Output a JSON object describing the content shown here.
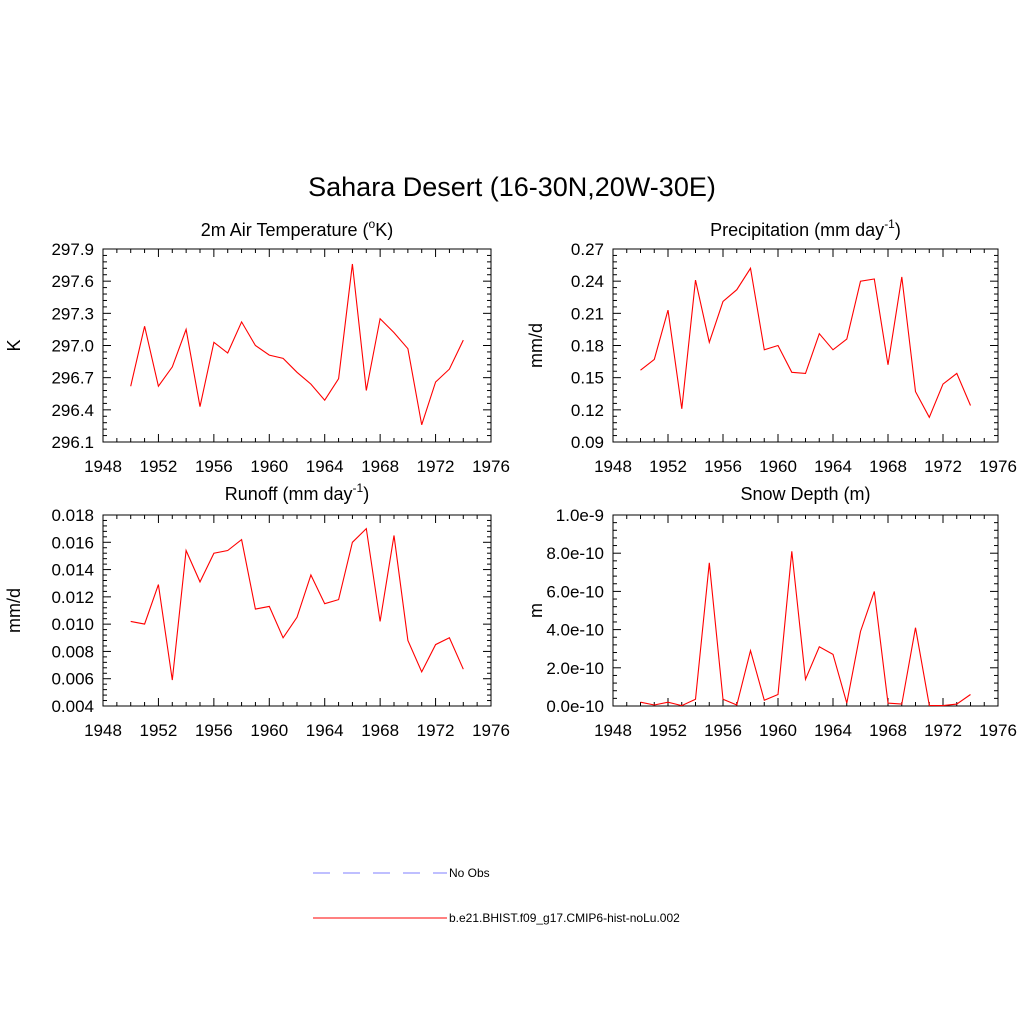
{
  "figure": {
    "title": "Sahara Desert (16-30N,20W-30E)",
    "series_color": "#ff0000",
    "obs_color": "#9999ff"
  },
  "legend": {
    "obs_label": "No Obs",
    "model_label": "b.e21.BHIST.f09_g17.CMIP6-hist-noLu.002"
  },
  "chart_data": [
    {
      "type": "line",
      "title_parts": [
        "2m Air Temperature (",
        "o",
        "K)"
      ],
      "title_style": "sup",
      "ylabel": "K",
      "xlim": [
        1948,
        1976
      ],
      "ylim": [
        296.1,
        297.9
      ],
      "xticks": [
        "1948",
        "1952",
        "1956",
        "1960",
        "1964",
        "1968",
        "1972",
        "1976"
      ],
      "yticks": [
        "296.1",
        "296.4",
        "296.7",
        "297.0",
        "297.3",
        "297.6",
        "297.9"
      ],
      "series": [
        {
          "x": [
            1950,
            1951,
            1952,
            1953,
            1954,
            1955,
            1956,
            1957,
            1958,
            1959,
            1960,
            1961,
            1962,
            1963,
            1964,
            1965,
            1966,
            1967,
            1968,
            1969,
            1970,
            1971,
            1972,
            1973,
            1974
          ],
          "values": [
            296.62,
            297.18,
            296.62,
            296.8,
            297.15,
            296.43,
            297.03,
            296.93,
            297.22,
            297.0,
            296.91,
            296.88,
            296.75,
            296.64,
            296.49,
            296.69,
            297.76,
            296.58,
            297.25,
            297.12,
            296.97,
            296.26,
            296.66,
            296.78,
            297.05
          ]
        }
      ]
    },
    {
      "type": "line",
      "title_parts": [
        "Precipitation (mm day",
        "-1",
        ")"
      ],
      "title_style": "sup",
      "ylabel": "mm/d",
      "xlim": [
        1948,
        1976
      ],
      "ylim": [
        0.09,
        0.27
      ],
      "xticks": [
        "1948",
        "1952",
        "1956",
        "1960",
        "1964",
        "1968",
        "1972",
        "1976"
      ],
      "yticks": [
        "0.09",
        "0.12",
        "0.15",
        "0.18",
        "0.21",
        "0.24",
        "0.27"
      ],
      "series": [
        {
          "x": [
            1950,
            1951,
            1952,
            1953,
            1954,
            1955,
            1956,
            1957,
            1958,
            1959,
            1960,
            1961,
            1962,
            1963,
            1964,
            1965,
            1966,
            1967,
            1968,
            1969,
            1970,
            1971,
            1972,
            1973,
            1974
          ],
          "values": [
            0.157,
            0.167,
            0.213,
            0.121,
            0.241,
            0.183,
            0.221,
            0.232,
            0.252,
            0.176,
            0.18,
            0.155,
            0.154,
            0.191,
            0.176,
            0.186,
            0.24,
            0.242,
            0.162,
            0.244,
            0.137,
            0.113,
            0.144,
            0.154,
            0.124
          ]
        }
      ]
    },
    {
      "type": "line",
      "title_parts": [
        "Runoff (mm day",
        "-1",
        ")"
      ],
      "title_style": "sup",
      "ylabel": "mm/d",
      "xlim": [
        1948,
        1976
      ],
      "ylim": [
        0.004,
        0.018
      ],
      "xticks": [
        "1948",
        "1952",
        "1956",
        "1960",
        "1964",
        "1968",
        "1972",
        "1976"
      ],
      "yticks": [
        "0.004",
        "0.006",
        "0.008",
        "0.010",
        "0.012",
        "0.014",
        "0.016",
        "0.018"
      ],
      "series": [
        {
          "x": [
            1950,
            1951,
            1952,
            1953,
            1954,
            1955,
            1956,
            1957,
            1958,
            1959,
            1960,
            1961,
            1962,
            1963,
            1964,
            1965,
            1966,
            1967,
            1968,
            1969,
            1970,
            1971,
            1972,
            1973,
            1974
          ],
          "values": [
            0.0102,
            0.01,
            0.0129,
            0.0059,
            0.0154,
            0.0131,
            0.0152,
            0.0154,
            0.0162,
            0.0111,
            0.0113,
            0.009,
            0.0105,
            0.0136,
            0.0115,
            0.0118,
            0.016,
            0.017,
            0.0102,
            0.0165,
            0.0088,
            0.0065,
            0.0085,
            0.009,
            0.0067
          ]
        }
      ]
    },
    {
      "type": "line",
      "title_parts": [
        "Snow Depth (m)"
      ],
      "title_style": "plain",
      "ylabel": "m",
      "xlim": [
        1948,
        1976
      ],
      "ylim": [
        0,
        1e-09
      ],
      "xticks": [
        "1948",
        "1952",
        "1956",
        "1960",
        "1964",
        "1968",
        "1972",
        "1976"
      ],
      "yticks": [
        "0.0e-10",
        "2.0e-10",
        "4.0e-10",
        "6.0e-10",
        "8.0e-10",
        "1.0e-9"
      ],
      "series": [
        {
          "x": [
            1950,
            1951,
            1952,
            1953,
            1954,
            1955,
            1956,
            1957,
            1958,
            1959,
            1960,
            1961,
            1962,
            1963,
            1964,
            1965,
            1966,
            1967,
            1968,
            1969,
            1970,
            1971,
            1972,
            1973,
            1974
          ],
          "values": [
            2e-11,
            5e-12,
            2e-11,
            2e-12,
            3.5e-11,
            7.5e-10,
            3.5e-11,
            5e-12,
            2.9e-10,
            3e-11,
            6e-11,
            8.1e-10,
            1.4e-10,
            3.1e-10,
            2.7e-10,
            1.5e-11,
            3.9e-10,
            6e-10,
            1.5e-11,
            1e-11,
            4.1e-10,
            3e-12,
            2e-12,
            1e-11,
            6e-11
          ]
        }
      ]
    }
  ]
}
